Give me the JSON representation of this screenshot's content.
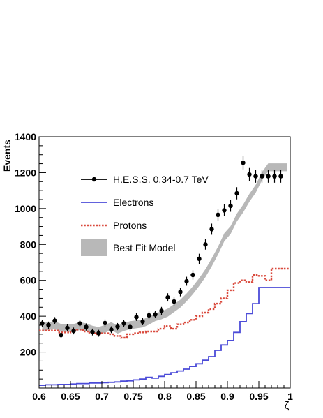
{
  "chart_data": {
    "type": "line",
    "title": "",
    "xlabel": "ζ",
    "ylabel": "Events",
    "xlim": [
      0.6,
      1.0
    ],
    "ylim": [
      0,
      1400
    ],
    "x_ticks": [
      "0.6",
      "0.65",
      "0.7",
      "0.75",
      "0.8",
      "0.85",
      "0.9",
      "0.95",
      "1"
    ],
    "y_ticks": [
      "200",
      "400",
      "600",
      "800",
      "1000",
      "1200",
      "1400"
    ],
    "legend_position": "upper-left",
    "grid": false,
    "x": [
      0.6,
      0.61,
      0.62,
      0.63,
      0.64,
      0.65,
      0.66,
      0.67,
      0.68,
      0.69,
      0.7,
      0.71,
      0.72,
      0.73,
      0.74,
      0.75,
      0.76,
      0.77,
      0.78,
      0.79,
      0.8,
      0.81,
      0.82,
      0.83,
      0.84,
      0.85,
      0.86,
      0.87,
      0.88,
      0.89,
      0.9,
      0.91,
      0.92,
      0.93,
      0.94,
      0.95,
      0.96,
      0.97,
      0.98,
      0.99
    ],
    "series": [
      {
        "name": "H.E.S.S. 0.34-0.7 TeV",
        "style": "points",
        "color": "#000000",
        "x": [
          0.605,
          0.615,
          0.625,
          0.635,
          0.645,
          0.655,
          0.665,
          0.675,
          0.685,
          0.695,
          0.705,
          0.715,
          0.725,
          0.735,
          0.745,
          0.755,
          0.765,
          0.775,
          0.785,
          0.795,
          0.805,
          0.815,
          0.825,
          0.835,
          0.845,
          0.855,
          0.865,
          0.875,
          0.885,
          0.895,
          0.905,
          0.915,
          0.925,
          0.935,
          0.945,
          0.955,
          0.965,
          0.975,
          0.985
        ],
        "values": [
          360,
          350,
          375,
          295,
          335,
          318,
          360,
          340,
          312,
          305,
          362,
          325,
          342,
          360,
          340,
          395,
          370,
          405,
          410,
          430,
          505,
          482,
          535,
          595,
          630,
          720,
          800,
          885,
          965,
          990,
          1015,
          1085,
          1255,
          1190,
          1180,
          1180,
          1180,
          1180,
          1180
        ],
        "errors": [
          20,
          20,
          20,
          19,
          20,
          19,
          20,
          20,
          19,
          19,
          20,
          19,
          20,
          20,
          20,
          21,
          20,
          21,
          21,
          22,
          23,
          23,
          24,
          25,
          26,
          28,
          29,
          31,
          32,
          33,
          33,
          34,
          37,
          36,
          36,
          36,
          36,
          36,
          36
        ]
      },
      {
        "name": "Electrons",
        "style": "step",
        "color": "#4b4bd8",
        "values": [
          15,
          18,
          18,
          20,
          20,
          22,
          25,
          25,
          28,
          28,
          30,
          32,
          34,
          38,
          40,
          45,
          50,
          60,
          55,
          65,
          75,
          85,
          95,
          105,
          120,
          135,
          155,
          175,
          210,
          240,
          265,
          310,
          370,
          415,
          470,
          560,
          560,
          560,
          560,
          560
        ]
      },
      {
        "name": "Protons",
        "style": "step-dotted",
        "color": "#d9493c",
        "values": [
          320,
          320,
          320,
          310,
          310,
          320,
          325,
          315,
          305,
          300,
          305,
          300,
          290,
          280,
          300,
          305,
          310,
          315,
          315,
          330,
          345,
          330,
          355,
          365,
          380,
          400,
          420,
          440,
          470,
          500,
          545,
          585,
          600,
          590,
          630,
          625,
          600,
          665,
          665,
          665
        ]
      },
      {
        "name": "Best Fit Model",
        "style": "band",
        "color": "#b8b8b8",
        "values": [
          340,
          345,
          350,
          335,
          335,
          335,
          345,
          338,
          325,
          318,
          330,
          345,
          325,
          340,
          350,
          355,
          360,
          375,
          395,
          405,
          420,
          445,
          470,
          505,
          545,
          590,
          640,
          700,
          765,
          840,
          880,
          950,
          1000,
          1060,
          1110,
          1180,
          1230,
          1230,
          1230,
          1230
        ],
        "band_half_width": 22
      }
    ]
  }
}
